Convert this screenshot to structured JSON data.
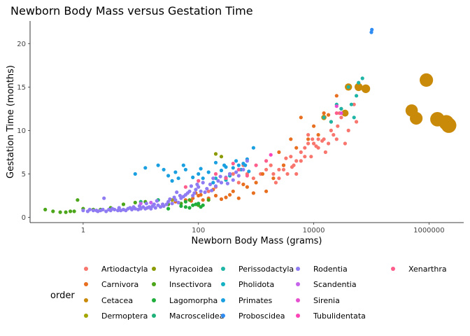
{
  "chart_data": {
    "type": "scatter",
    "title": "Newborn Body Mass versus Gestation Time",
    "xlabel": "Newborn Body Mass (grams)",
    "ylabel": "Gestation Time (months)",
    "x_scale": "log10",
    "x_ticks": [
      1,
      100,
      10000,
      1000000
    ],
    "x_tick_labels": [
      "1",
      "100",
      "10000",
      "1000000"
    ],
    "xlim": [
      0.12,
      4000000
    ],
    "y_ticks": [
      0,
      5,
      10,
      15,
      20
    ],
    "y_tick_labels": [
      "0",
      "5",
      "10",
      "15",
      "20"
    ],
    "ylim": [
      -0.6,
      22.6
    ],
    "grid": false,
    "legend_position": "bottom",
    "legend_title": "order",
    "series": [
      {
        "name": "Artiodactyla",
        "color": "#F8766D",
        "points": [
          [
            150,
            3.0
          ],
          [
            200,
            3.5
          ],
          [
            300,
            4.5
          ],
          [
            400,
            5.0
          ],
          [
            500,
            4.0
          ],
          [
            600,
            6.0
          ],
          [
            700,
            5.0
          ],
          [
            900,
            4.5
          ],
          [
            1200,
            5.0
          ],
          [
            1500,
            5.5
          ],
          [
            2000,
            5.0
          ],
          [
            2500,
            5.5
          ],
          [
            3000,
            6.0
          ],
          [
            3500,
            5.0
          ],
          [
            4000,
            7.0
          ],
          [
            5000,
            6.5
          ],
          [
            6000,
            7.5
          ],
          [
            7000,
            8.0
          ],
          [
            8000,
            8.5
          ],
          [
            9000,
            7.0
          ],
          [
            10000,
            8.5
          ],
          [
            12000,
            8.0
          ],
          [
            15000,
            9.0
          ],
          [
            18000,
            8.5
          ],
          [
            20000,
            10.0
          ],
          [
            25000,
            9.0
          ],
          [
            30000,
            11.5
          ],
          [
            35000,
            8.5
          ],
          [
            40000,
            10.0
          ],
          [
            2500,
            4.5
          ],
          [
            3000,
            5.5
          ],
          [
            4500,
            6.0
          ],
          [
            6000,
            6.5
          ],
          [
            8000,
            9.5
          ],
          [
            12000,
            9.0
          ],
          [
            16000,
            7.5
          ],
          [
            22000,
            9.5
          ],
          [
            28000,
            12.0
          ],
          [
            50000,
            13.0
          ],
          [
            55000,
            11.0
          ],
          [
            5000,
            5.0
          ],
          [
            7000,
            7.0
          ],
          [
            9500,
            9.0
          ],
          [
            14000,
            8.8
          ],
          [
            26000,
            10.5
          ],
          [
            1800,
            6.0
          ],
          [
            2200,
            4.0
          ],
          [
            3300,
            6.8
          ],
          [
            4200,
            5.8
          ],
          [
            11000,
            8.2
          ]
        ]
      },
      {
        "name": "Carnivora",
        "color": "#E76F1F",
        "points": [
          [
            40,
            1.8
          ],
          [
            60,
            2.0
          ],
          [
            80,
            2.2
          ],
          [
            100,
            2.5
          ],
          [
            120,
            2.0
          ],
          [
            150,
            2.2
          ],
          [
            200,
            2.5
          ],
          [
            250,
            2.1
          ],
          [
            300,
            2.3
          ],
          [
            400,
            3.0
          ],
          [
            500,
            2.2
          ],
          [
            700,
            3.5
          ],
          [
            1000,
            4.0
          ],
          [
            1500,
            3.0
          ],
          [
            2000,
            4.5
          ],
          [
            3000,
            6.0
          ],
          [
            5000,
            8.0
          ],
          [
            8000,
            9.0
          ],
          [
            10000,
            10.5
          ],
          [
            15000,
            12.0
          ],
          [
            20000,
            11.0
          ],
          [
            30000,
            12.5
          ],
          [
            90,
            2.8
          ],
          [
            180,
            3.2
          ],
          [
            350,
            2.6
          ],
          [
            600,
            3.8
          ],
          [
            900,
            2.8
          ],
          [
            1300,
            5.0
          ],
          [
            2500,
            7.5
          ],
          [
            4000,
            9.0
          ],
          [
            6000,
            11.5
          ],
          [
            12000,
            9.5
          ],
          [
            18000,
            11.8
          ],
          [
            25000,
            14.0
          ],
          [
            75,
            1.9
          ],
          [
            110,
            2.6
          ]
        ]
      },
      {
        "name": "Cetacea",
        "color": "#C98A0A",
        "size": "large",
        "points": [
          [
            15000,
            11.5
          ],
          [
            35000,
            12.0
          ],
          [
            40000,
            15.0
          ],
          [
            60000,
            15.0
          ],
          [
            80000,
            14.8
          ],
          [
            500000,
            12.3
          ],
          [
            600000,
            11.4
          ],
          [
            900000,
            15.8
          ],
          [
            1400000,
            11.3
          ],
          [
            2000000,
            10.9
          ],
          [
            2200000,
            10.6
          ]
        ]
      },
      {
        "name": "Dermoptera",
        "color": "#A3A500",
        "points": [
          [
            35,
            2.0
          ]
        ]
      },
      {
        "name": "Hyracoidea",
        "color": "#8B9A00",
        "points": [
          [
            200,
            7.3
          ],
          [
            250,
            7.0
          ]
        ]
      },
      {
        "name": "Insectivora",
        "color": "#4BA619",
        "points": [
          [
            0.22,
            0.9
          ],
          [
            0.3,
            0.7
          ],
          [
            0.4,
            0.6
          ],
          [
            0.5,
            0.6
          ],
          [
            0.6,
            0.7
          ],
          [
            0.7,
            0.7
          ],
          [
            0.8,
            2.0
          ],
          [
            1.0,
            1.0
          ],
          [
            1.5,
            0.9
          ],
          [
            2.0,
            0.9
          ],
          [
            3.0,
            1.1
          ],
          [
            5.0,
            1.5
          ],
          [
            8.0,
            1.7
          ],
          [
            12.0,
            1.8
          ],
          [
            20.0,
            2.0
          ],
          [
            30.0,
            1.5
          ],
          [
            50.0,
            1.6
          ],
          [
            70.0,
            2.0
          ],
          [
            100.0,
            1.4
          ],
          [
            150.0,
            2.0
          ]
        ]
      },
      {
        "name": "Lagomorpha",
        "color": "#1FAE3C",
        "points": [
          [
            30,
            1.0
          ],
          [
            50,
            1.3
          ],
          [
            60,
            1.2
          ],
          [
            70,
            1.1
          ],
          [
            80,
            1.4
          ],
          [
            90,
            1.5
          ],
          [
            100,
            1.6
          ],
          [
            120,
            1.4
          ],
          [
            60,
            1.8
          ],
          [
            110,
            1.2
          ]
        ]
      },
      {
        "name": "Macroscelidea",
        "color": "#1FB27A",
        "points": [
          [
            10,
            1.8
          ],
          [
            20,
            2.0
          ]
        ]
      },
      {
        "name": "Perissodactyla",
        "color": "#1FB5A6",
        "points": [
          [
            15000,
            11.5
          ],
          [
            20000,
            11.0
          ],
          [
            25000,
            13.0
          ],
          [
            30000,
            12.5
          ],
          [
            40000,
            15.0
          ],
          [
            45000,
            13.0
          ],
          [
            50000,
            11.5
          ],
          [
            55000,
            14.0
          ],
          [
            60000,
            15.5
          ],
          [
            70000,
            16.0
          ]
        ]
      },
      {
        "name": "Pholidota",
        "color": "#14B1C2",
        "points": [
          [
            200,
            4.5
          ],
          [
            300,
            4.3
          ],
          [
            350,
            4.8
          ]
        ]
      },
      {
        "name": "Primates",
        "color": "#1AA0E0",
        "points": [
          [
            8,
            5.0
          ],
          [
            12,
            5.7
          ],
          [
            20,
            6.0
          ],
          [
            25,
            5.5
          ],
          [
            30,
            4.8
          ],
          [
            40,
            5.2
          ],
          [
            45,
            4.5
          ],
          [
            60,
            5.5
          ],
          [
            80,
            4.6
          ],
          [
            100,
            5.0
          ],
          [
            120,
            4.5
          ],
          [
            150,
            5.2
          ],
          [
            200,
            6.3
          ],
          [
            250,
            5.4
          ],
          [
            300,
            5.8
          ],
          [
            400,
            5.7
          ],
          [
            500,
            6.0
          ],
          [
            600,
            6.2
          ],
          [
            700,
            6.7
          ],
          [
            180,
            4.0
          ],
          [
            280,
            6.0
          ],
          [
            350,
            5.0
          ],
          [
            450,
            6.5
          ],
          [
            550,
            5.5
          ],
          [
            650,
            6.0
          ],
          [
            750,
            5.3
          ],
          [
            900,
            8.0
          ],
          [
            55,
            6.0
          ],
          [
            110,
            5.6
          ],
          [
            35,
            4.2
          ]
        ]
      },
      {
        "name": "Proboscidea",
        "color": "#2E8CF2",
        "points": [
          [
            100000,
            21.3
          ],
          [
            102000,
            21.6
          ]
        ]
      },
      {
        "name": "Rodentia",
        "color": "#8F7BF2",
        "points": [
          [
            1.0,
            0.8
          ],
          [
            1.2,
            0.7
          ],
          [
            1.5,
            0.8
          ],
          [
            1.8,
            0.7
          ],
          [
            2.0,
            0.8
          ],
          [
            2.2,
            0.9
          ],
          [
            2.5,
            0.7
          ],
          [
            3.0,
            0.8
          ],
          [
            3.5,
            0.9
          ],
          [
            4.0,
            0.8
          ],
          [
            4.5,
            0.8
          ],
          [
            5.0,
            0.9
          ],
          [
            5.5,
            0.8
          ],
          [
            6.0,
            1.0
          ],
          [
            7.0,
            0.9
          ],
          [
            8.0,
            1.0
          ],
          [
            9.0,
            0.9
          ],
          [
            10.0,
            1.0
          ],
          [
            11.0,
            1.2
          ],
          [
            12.0,
            1.0
          ],
          [
            13.0,
            1.1
          ],
          [
            14.0,
            1.2
          ],
          [
            15.0,
            1.0
          ],
          [
            16.0,
            1.3
          ],
          [
            18.0,
            1.1
          ],
          [
            20.0,
            1.4
          ],
          [
            22.0,
            1.2
          ],
          [
            25.0,
            1.3
          ],
          [
            28.0,
            1.5
          ],
          [
            30.0,
            1.8
          ],
          [
            35.0,
            1.6
          ],
          [
            40.0,
            2.0
          ],
          [
            45.0,
            1.7
          ],
          [
            50.0,
            2.2
          ],
          [
            55.0,
            2.4
          ],
          [
            60.0,
            2.6
          ],
          [
            65.0,
            2.8
          ],
          [
            70.0,
            3.0
          ],
          [
            80.0,
            2.5
          ],
          [
            90.0,
            3.2
          ],
          [
            100.0,
            3.5
          ],
          [
            110.0,
            3.0
          ],
          [
            120.0,
            4.0
          ],
          [
            140.0,
            3.3
          ],
          [
            160.0,
            3.8
          ],
          [
            180.0,
            4.5
          ],
          [
            200.0,
            3.6
          ],
          [
            220.0,
            4.2
          ],
          [
            250.0,
            4.0
          ],
          [
            300.0,
            4.6
          ],
          [
            350.0,
            5.0
          ],
          [
            400.0,
            4.3
          ],
          [
            450.0,
            5.2
          ],
          [
            500.0,
            4.8
          ],
          [
            600.0,
            5.5
          ],
          [
            700.0,
            6.5
          ],
          [
            1.3,
            0.9
          ],
          [
            1.7,
            0.8
          ],
          [
            2.8,
            0.9
          ],
          [
            3.2,
            1.0
          ],
          [
            4.2,
            1.1
          ],
          [
            6.5,
            1.1
          ],
          [
            7.5,
            1.2
          ],
          [
            9.5,
            1.3
          ],
          [
            17.0,
            1.5
          ],
          [
            19.0,
            1.9
          ],
          [
            24.0,
            1.5
          ],
          [
            32.0,
            2.1
          ],
          [
            38.0,
            2.3
          ],
          [
            42.0,
            2.9
          ],
          [
            48.0,
            2.5
          ],
          [
            75.0,
            3.6
          ],
          [
            85.0,
            2.8
          ],
          [
            95.0,
            3.8
          ],
          [
            130.0,
            2.9
          ],
          [
            170.0,
            3.1
          ],
          [
            240.0,
            4.7
          ],
          [
            320.0,
            3.9
          ],
          [
            12.5,
            1.6
          ],
          [
            2.3,
            2.2
          ]
        ]
      },
      {
        "name": "Scandentia",
        "color": "#C564EB",
        "points": [
          [
            10,
            1.6
          ],
          [
            15,
            1.7
          ]
        ]
      },
      {
        "name": "Sirenia",
        "color": "#E54FD0",
        "points": [
          [
            25000,
            12.8
          ],
          [
            30000,
            12.0
          ]
        ]
      },
      {
        "name": "Tubulidentata",
        "color": "#FC44B6",
        "points": [
          [
            1800,
            7.2
          ]
        ]
      },
      {
        "name": "Xenarthra",
        "color": "#FF5D8B",
        "points": [
          [
            60,
            3.5
          ],
          [
            100,
            4.2
          ],
          [
            200,
            5.0
          ],
          [
            300,
            4.5
          ],
          [
            500,
            5.5
          ],
          [
            1000,
            6.0
          ],
          [
            1500,
            6.5
          ],
          [
            25000,
            12.0
          ],
          [
            700,
            4.8
          ],
          [
            400,
            6.2
          ]
        ]
      }
    ]
  }
}
